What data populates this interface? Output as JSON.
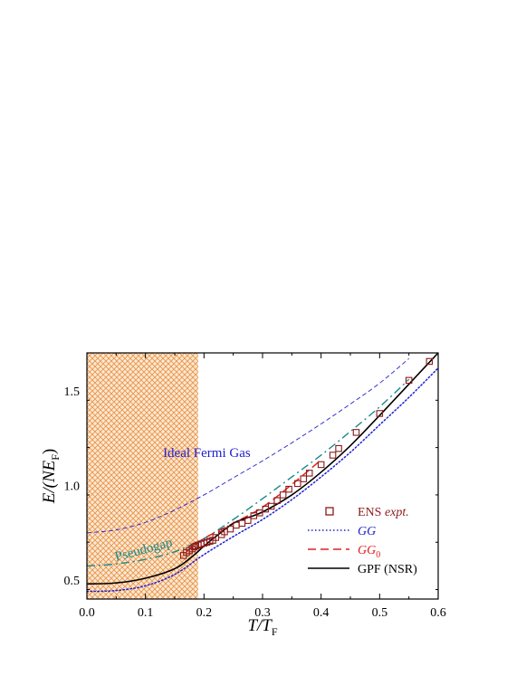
{
  "chart_data": {
    "type": "line",
    "xlabel": {
      "main": "T/T",
      "sub": "F"
    },
    "ylabel": {
      "main": "E/(NE",
      "sub": "F",
      "close": ")"
    },
    "xlim": [
      0.0,
      0.6
    ],
    "ylim": [
      0.4,
      1.7
    ],
    "x_ticks": [
      0.0,
      0.1,
      0.2,
      0.3,
      0.4,
      0.5,
      0.6
    ],
    "x_tick_labels": [
      "0.0",
      "0.1",
      "0.2",
      "0.3",
      "0.4",
      "0.5",
      "0.6"
    ],
    "y_ticks": [
      0.5,
      1.0,
      1.5
    ],
    "y_tick_labels": [
      "0.5",
      "1.0",
      "1.5"
    ],
    "grid": false,
    "legend_placement": "bottom-right",
    "shaded_region": {
      "x_from": 0.0,
      "x_to": 0.19,
      "color": "#f5a35c",
      "pattern": "crosshatch"
    },
    "annotations": [
      {
        "text": "Ideal Fermi Gas",
        "x": 0.13,
        "y": 1.15,
        "color": "#2020d0",
        "rotation": 0
      },
      {
        "text": "Pseudogap",
        "x": 0.05,
        "y": 0.6,
        "color": "#1a8a8a",
        "rotation": -15
      }
    ],
    "legend": [
      {
        "key": "ens",
        "label": "ENS ",
        "label_italic": "expt.",
        "color": "#8b1a1a",
        "style": "marker-square"
      },
      {
        "key": "gg",
        "label": "",
        "label_italic": "GG",
        "color": "#2020d0",
        "style": "dotted"
      },
      {
        "key": "gg0",
        "label": "",
        "label_italic": "GG",
        "sub": "0",
        "color": "#e02020",
        "style": "dashed"
      },
      {
        "key": "gpf",
        "label": "GPF (NSR)",
        "label_italic": "",
        "color": "#000000",
        "style": "solid"
      }
    ],
    "series": [
      {
        "key": "ideal",
        "color": "#2020d0",
        "style": "dashed-thin",
        "x": [
          0.0,
          0.05,
          0.1,
          0.15,
          0.2,
          0.25,
          0.3,
          0.35,
          0.4,
          0.45,
          0.5,
          0.55
        ],
        "y": [
          0.75,
          0.765,
          0.805,
          0.87,
          0.95,
          1.04,
          1.13,
          1.225,
          1.325,
          1.43,
          1.54,
          1.67
        ]
      },
      {
        "key": "pseudogap",
        "color": "#1a8a8a",
        "style": "dashdot",
        "x": [
          0.0,
          0.05,
          0.1,
          0.15,
          0.2,
          0.25,
          0.3,
          0.35,
          0.4,
          0.45,
          0.5,
          0.55
        ],
        "y": [
          0.575,
          0.585,
          0.61,
          0.65,
          0.72,
          0.82,
          0.93,
          1.045,
          1.16,
          1.285,
          1.415,
          1.56
        ]
      },
      {
        "key": "gg",
        "color": "#2020d0",
        "style": "dotted",
        "x": [
          0.0,
          0.05,
          0.1,
          0.15,
          0.2,
          0.25,
          0.3,
          0.35,
          0.4,
          0.45,
          0.5,
          0.55,
          0.6
        ],
        "y": [
          0.44,
          0.445,
          0.47,
          0.53,
          0.635,
          0.73,
          0.82,
          0.925,
          1.045,
          1.175,
          1.32,
          1.465,
          1.62
        ]
      },
      {
        "key": "gg0",
        "color": "#e02020",
        "style": "dashed",
        "x": [
          0.17,
          0.2,
          0.25,
          0.3,
          0.35,
          0.4
        ],
        "y": [
          0.65,
          0.72,
          0.8,
          0.885,
          1.005,
          1.135
        ]
      },
      {
        "key": "gpf",
        "color": "#000000",
        "style": "solid",
        "x": [
          0.0,
          0.05,
          0.1,
          0.15,
          0.18,
          0.2,
          0.22,
          0.25,
          0.27,
          0.3,
          0.35,
          0.4,
          0.45,
          0.5,
          0.55,
          0.6
        ],
        "y": [
          0.48,
          0.485,
          0.51,
          0.56,
          0.625,
          0.68,
          0.73,
          0.8,
          0.825,
          0.86,
          0.95,
          1.07,
          1.21,
          1.37,
          1.535,
          1.7
        ]
      }
    ],
    "scatter": {
      "key": "ens",
      "color": "#8b1a1a",
      "marker": "square-open",
      "x": [
        0.165,
        0.17,
        0.175,
        0.18,
        0.183,
        0.186,
        0.19,
        0.195,
        0.2,
        0.205,
        0.21,
        0.215,
        0.22,
        0.23,
        0.235,
        0.245,
        0.255,
        0.265,
        0.275,
        0.285,
        0.295,
        0.305,
        0.315,
        0.325,
        0.335,
        0.345,
        0.36,
        0.37,
        0.38,
        0.4,
        0.42,
        0.43,
        0.46,
        0.5,
        0.55,
        0.585
      ],
      "y": [
        0.63,
        0.645,
        0.655,
        0.665,
        0.675,
        0.68,
        0.685,
        0.69,
        0.695,
        0.7,
        0.705,
        0.71,
        0.725,
        0.74,
        0.755,
        0.77,
        0.79,
        0.8,
        0.815,
        0.84,
        0.855,
        0.875,
        0.89,
        0.92,
        0.95,
        0.98,
        1.01,
        1.035,
        1.065,
        1.11,
        1.16,
        1.195,
        1.28,
        1.38,
        1.555,
        1.655
      ]
    }
  }
}
